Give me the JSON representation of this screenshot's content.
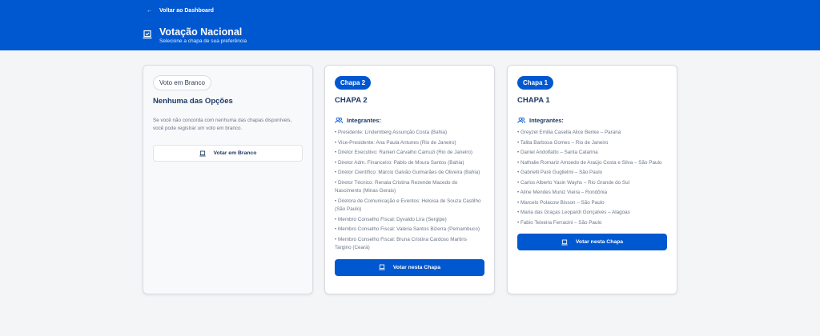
{
  "header": {
    "back_label": "Voltar ao Dashboard",
    "title": "Votação Nacional",
    "subtitle": "Selecione a chapa de sua preferência",
    "accent": "#0058d1"
  },
  "blank_card": {
    "badge": "Voto em Branco",
    "title": "Nenhuma das Opções",
    "description": "Se você não concorda com nenhuma das chapas disponíveis, você pode registrar um voto em branco.",
    "button": "Votar em Branco"
  },
  "slates": [
    {
      "badge": "Chapa 2",
      "title": "CHAPA 2",
      "members_label": "Integrantes:",
      "members": [
        "• Presidente: Lindemberg Assunção Costa (Bahia)",
        "• Vice-Presidente: Ana Paula Antunes (Rio de Janeiro)",
        "• Diretor Executivo: Ranieri Carvalho Camuzi (Rio de Janeiro)",
        "• Diretor Adm. Financeiro: Pablo de Moura Santos (Bahia)",
        "• Diretor Científico: Márcio Galvão Guimarães de Oliveira (Bahia)",
        "• Diretor Técnico: Renata Cristina Rezende Macedo do Nascimento (Minas Gerais)",
        "• Diretora de Comunicação e Eventos: Heloisa de Souza Castilho (São Paulo)",
        "• Membro Conselho Fiscal: Dyvaldo Lira (Sergipe)",
        "• Membro Conselho Fiscal: Valéria Santos Bizerra (Pernambuco)",
        "• Membro Conselho Fiscal: Bruna Cristina Cardoso Martins Targino (Ceará)"
      ],
      "button": "Votar nesta Chapa"
    },
    {
      "badge": "Chapa 1",
      "title": "CHAPA 1",
      "members_label": "Integrantes:",
      "members": [
        "• Greyzel Emilia Casella Alice Benke – Paraná",
        "• Talita Barbosa Gomes – Rio de Janeiro",
        "• Daniel Andolfatto – Santa Catarina",
        "• Nathalie Romariz Amoedo de Araújo Costa e Silva – São Paulo",
        "• Gabrielli Paré Guglielmi – São Paulo",
        "• Carlos Alberto Yasin Wayhs – Rio Grande do Sul",
        "• Aline Mendes Muniz Vieira – Rondônia",
        "• Marcelo Polacow Bisson – São Paulo",
        "• Maria das Graças Leopardi Gonçalves – Alagoas",
        "• Fabio Teixeira Ferracini – São Paulo"
      ],
      "button": "Votar nesta Chapa"
    }
  ]
}
